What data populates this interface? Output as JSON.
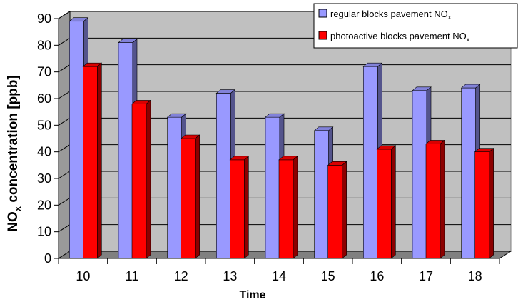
{
  "chart_data": {
    "type": "bar",
    "style": "3d-clustered-column",
    "categories": [
      "10",
      "11",
      "12",
      "13",
      "14",
      "15",
      "16",
      "17",
      "18"
    ],
    "series": [
      {
        "name": "regular blocks pavement NOx",
        "name_main": "regular blocks pavement NO",
        "name_sub": "x",
        "color": "#9999ff",
        "values": [
          89,
          81,
          53,
          62,
          53,
          48,
          72,
          63,
          64
        ]
      },
      {
        "name": "photoactive blocks pavement NOx",
        "name_main": "photoactive blocks pavement NO",
        "name_sub": "x",
        "color": "#ff0000",
        "values": [
          72,
          58,
          45,
          37,
          37,
          35,
          41,
          43,
          40
        ]
      }
    ],
    "xlabel": "Time",
    "ylabel": "NOx concentration [ppb]",
    "ylabel_parts": {
      "pre": "NO",
      "sub": "x",
      "post": " concentration [ppb]"
    },
    "ylim": [
      0,
      90
    ],
    "yticks": [
      0,
      10,
      20,
      30,
      40,
      50,
      60,
      70,
      80,
      90
    ],
    "grid": true,
    "legend_position": "top-right",
    "colors": {
      "wall": "#c0c0c0",
      "floor": "#808080",
      "gridline": "#000000"
    }
  }
}
